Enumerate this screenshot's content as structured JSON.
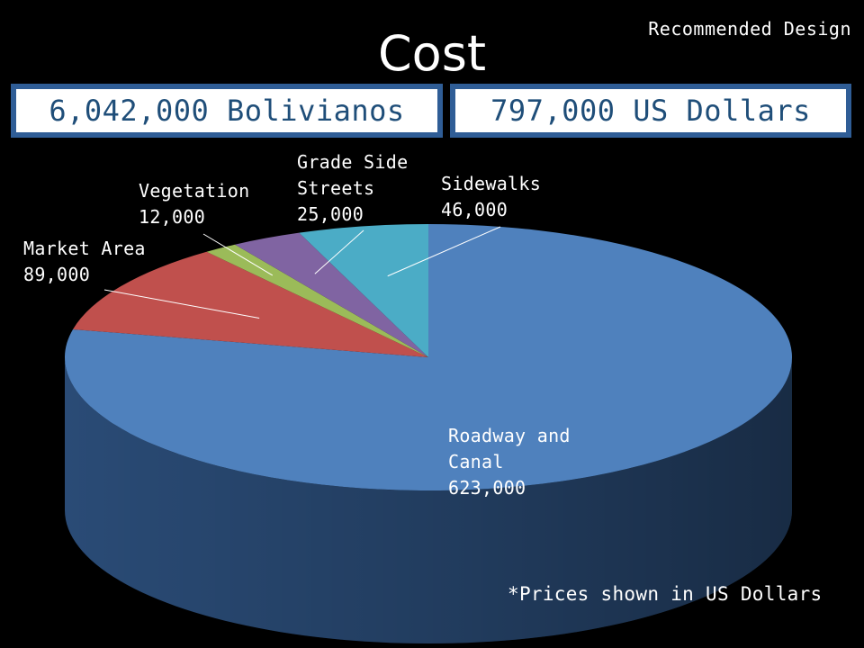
{
  "slide": {
    "tag": "Recommended Design",
    "title": "Cost",
    "boxes": {
      "bolivianos": "6,042,000 Bolivianos",
      "usd": "797,000 US Dollars"
    },
    "note": "*Prices shown in US Dollars"
  },
  "chart_data": {
    "type": "pie",
    "style": "3d",
    "title": "",
    "unit": "US Dollars",
    "categories": [
      "Roadway and Canal",
      "Market Area",
      "Vegetation",
      "Grade Side Streets",
      "Sidewalks"
    ],
    "values": [
      623000,
      89000,
      12000,
      25000,
      46000
    ],
    "data_labels": [
      {
        "name": "Roadway and Canal",
        "text": "Roadway and\nCanal\n623,000"
      },
      {
        "name": "Market Area",
        "text": "Market Area\n89,000"
      },
      {
        "name": "Vegetation",
        "text": "Vegetation\n12,000"
      },
      {
        "name": "Grade Side Streets",
        "text": "Grade Side\nStreets\n25,000"
      },
      {
        "name": "Sidewalks",
        "text": "Sidewalks\n46,000"
      }
    ],
    "colors": [
      "#4f81bd",
      "#c0504d",
      "#9bbb59",
      "#8064a2",
      "#4bacc6"
    ],
    "side_colors": [
      "#2c4f7c",
      "#7a2f2d",
      "#5f7434",
      "#4d3c63",
      "#2b6b7c"
    ],
    "legend": "none"
  }
}
